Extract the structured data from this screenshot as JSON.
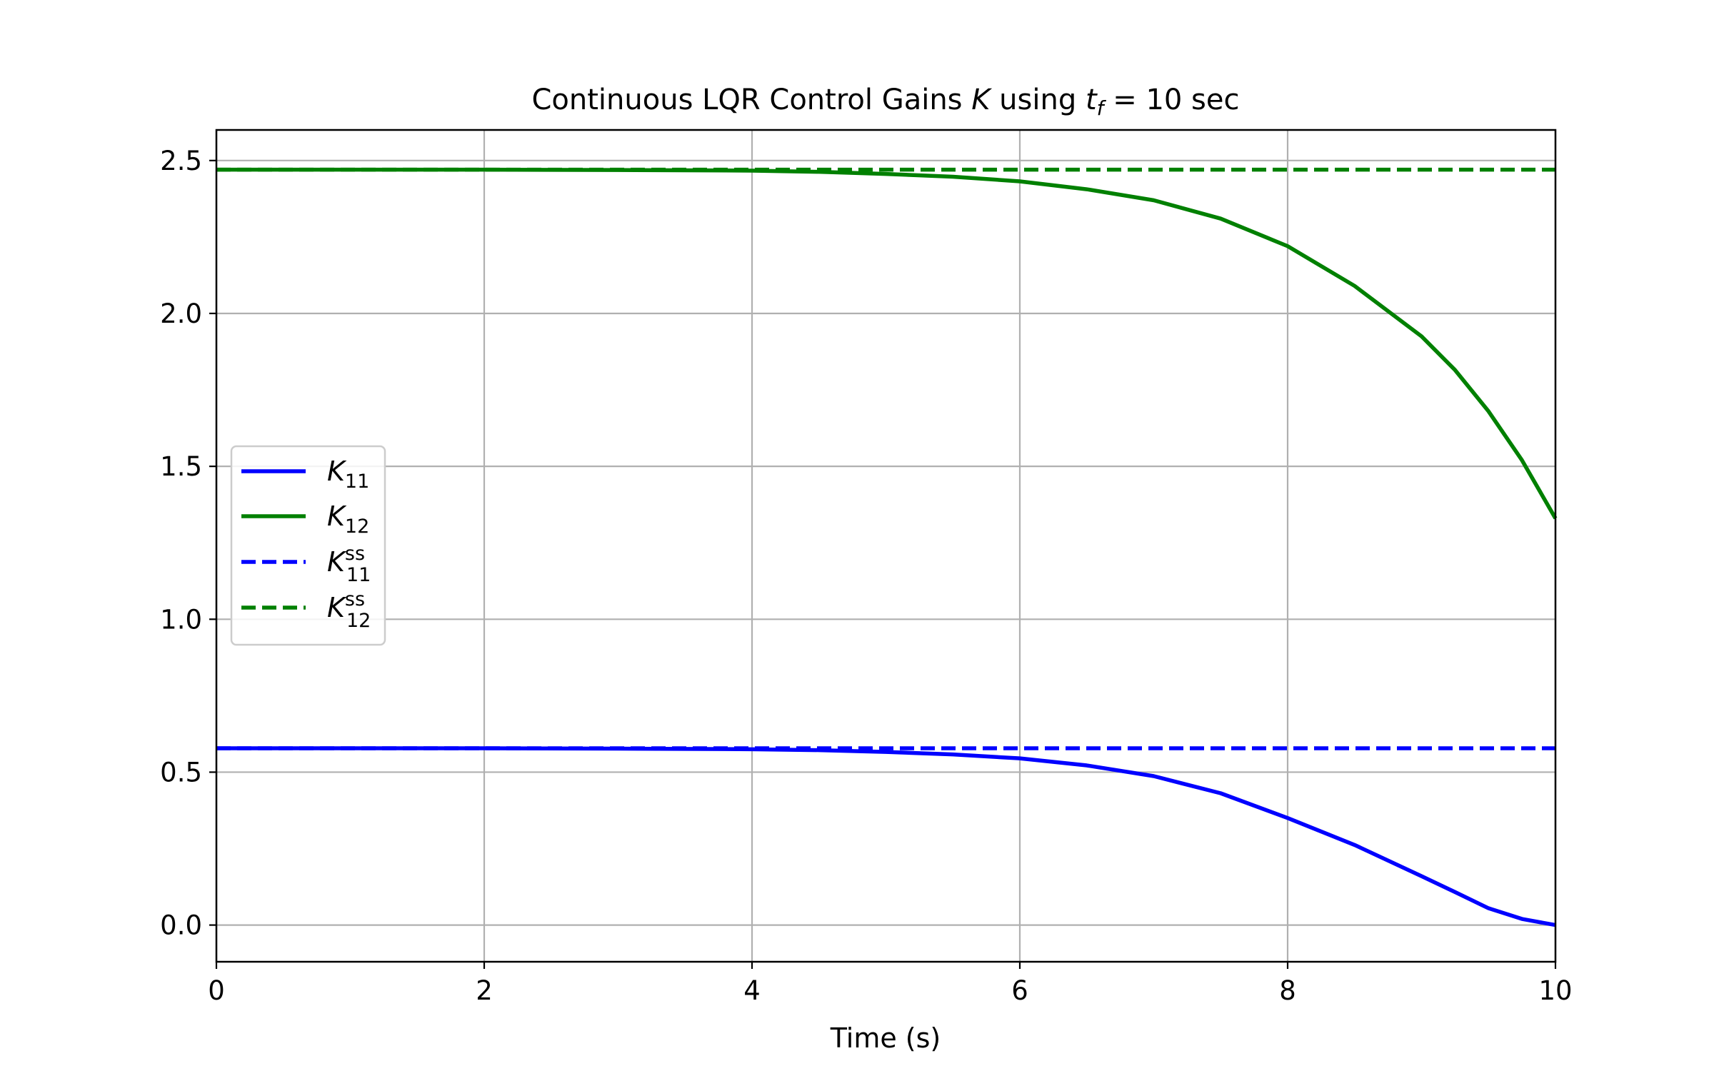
{
  "chart_data": {
    "type": "line",
    "title": {
      "prefix": "Continuous LQR Control Gains ",
      "k": "K",
      "mid": " using ",
      "t": "t",
      "t_sub": "f",
      "suffix": " = 10 sec"
    },
    "xlabel": "Time (s)",
    "ylabel": "",
    "xlim": [
      0,
      10
    ],
    "ylim": [
      -0.12,
      2.6
    ],
    "xticks": [
      0,
      2,
      4,
      6,
      8,
      10
    ],
    "xtick_labels": [
      "0",
      "2",
      "4",
      "6",
      "8",
      "10"
    ],
    "yticks": [
      0.0,
      0.5,
      1.0,
      1.5,
      2.0,
      2.5
    ],
    "ytick_labels": [
      "0.0",
      "0.5",
      "1.0",
      "1.5",
      "2.0",
      "2.5"
    ],
    "grid": true,
    "legend_position": "center-left",
    "series": [
      {
        "label": "K",
        "sub": "11",
        "sup": "",
        "style": "solid",
        "color": "#0000ff",
        "x": [
          0,
          1,
          2,
          3,
          4,
          4.5,
          5,
          5.5,
          6,
          6.5,
          7,
          7.5,
          8,
          8.5,
          9,
          9.25,
          9.5,
          9.75,
          10
        ],
        "y": [
          0.578,
          0.578,
          0.578,
          0.577,
          0.575,
          0.572,
          0.566,
          0.558,
          0.545,
          0.522,
          0.487,
          0.431,
          0.35,
          0.262,
          0.16,
          0.108,
          0.055,
          0.02,
          0.0
        ]
      },
      {
        "label": "K",
        "sub": "12",
        "sup": "",
        "style": "solid",
        "color": "#008000",
        "x": [
          0,
          1,
          2,
          3,
          4,
          4.5,
          5,
          5.5,
          6,
          6.5,
          7,
          7.5,
          8,
          8.5,
          9,
          9.25,
          9.5,
          9.75,
          10
        ],
        "y": [
          2.47,
          2.47,
          2.47,
          2.469,
          2.467,
          2.463,
          2.456,
          2.447,
          2.432,
          2.406,
          2.37,
          2.31,
          2.22,
          2.09,
          1.925,
          1.815,
          1.68,
          1.52,
          1.33
        ]
      },
      {
        "label": "K",
        "sub": "11",
        "sup": "ss",
        "style": "dashed",
        "color": "#0000ff",
        "x": [
          0,
          10
        ],
        "y": [
          0.578,
          0.578
        ]
      },
      {
        "label": "K",
        "sub": "12",
        "sup": "ss",
        "style": "dashed",
        "color": "#008000",
        "x": [
          0,
          10
        ],
        "y": [
          2.47,
          2.47
        ]
      }
    ]
  }
}
